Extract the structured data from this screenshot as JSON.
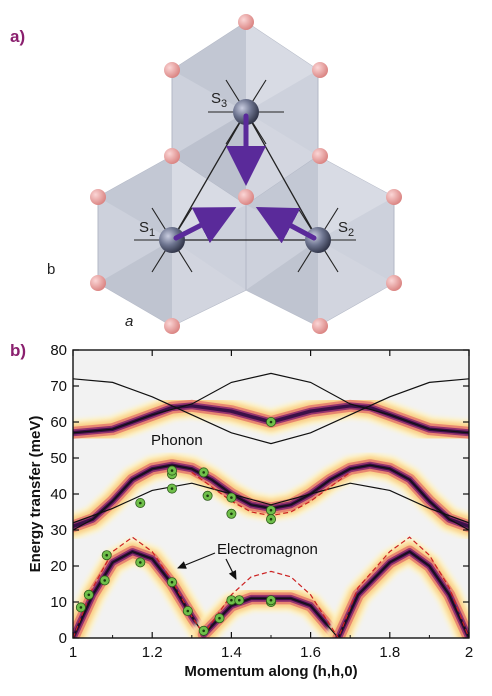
{
  "panel_a": {
    "label": "a)",
    "site_labels": [
      {
        "main": "S",
        "sub": "3"
      },
      {
        "main": "S",
        "sub": "1"
      },
      {
        "main": "S",
        "sub": "2"
      }
    ],
    "lattice_labels": [
      "b",
      "a"
    ],
    "colors": {
      "octahedron": "#c7ccd8",
      "spin_arrow": "#5a2a9a",
      "oxygen": "#e89a9a",
      "metal": "#5e6478"
    }
  },
  "panel_b": {
    "label": "b)",
    "annotations": [
      "Phonon",
      "Electromagnon"
    ],
    "colors": {
      "intensity": "#3a1048",
      "theory": "#111111",
      "dashed": "#cc2222",
      "points": "#6fbf4a"
    }
  },
  "chart_data": {
    "type": "heatmap",
    "title": "",
    "xlabel": "Momentum along (h,h,0)",
    "ylabel": "Energy transfer (meV)",
    "xlim": [
      1,
      2
    ],
    "ylim": [
      0,
      80
    ],
    "xticks": [
      "1",
      "1.2",
      "1.4",
      "1.6",
      "1.8",
      "2"
    ],
    "yticks": [
      "0",
      "10",
      "20",
      "30",
      "40",
      "50",
      "60",
      "70",
      "80"
    ],
    "grid": false,
    "bands": [
      {
        "name": "upper",
        "x": [
          1.0,
          1.1,
          1.2,
          1.25,
          1.3,
          1.4,
          1.5,
          1.6,
          1.7,
          1.75,
          1.8,
          1.9,
          2.0
        ],
        "y": [
          57,
          58,
          62,
          64,
          64.5,
          63,
          60,
          63,
          64.5,
          64,
          62,
          58,
          57
        ]
      },
      {
        "name": "phonon",
        "x": [
          1.0,
          1.05,
          1.1,
          1.15,
          1.2,
          1.25,
          1.3,
          1.35,
          1.4,
          1.45,
          1.5,
          1.55,
          1.6,
          1.65,
          1.7,
          1.75,
          1.8,
          1.85,
          1.9,
          1.95,
          2.0
        ],
        "y": [
          31,
          33,
          38,
          44,
          47,
          48,
          47,
          44,
          40,
          37,
          36,
          37,
          40,
          44,
          47,
          48,
          47,
          44,
          38,
          33,
          31
        ]
      },
      {
        "name": "magnon-left",
        "x": [
          1.0,
          1.05,
          1.1,
          1.15,
          1.2,
          1.25,
          1.3,
          1.33
        ],
        "y": [
          0,
          12,
          21,
          24,
          22,
          15,
          6,
          1
        ]
      },
      {
        "name": "magnon-mid",
        "x": [
          1.33,
          1.4,
          1.45,
          1.5,
          1.55,
          1.6,
          1.67
        ],
        "y": [
          1,
          9,
          11,
          11,
          11,
          9,
          0
        ]
      },
      {
        "name": "magnon-right",
        "x": [
          1.67,
          1.72,
          1.8,
          1.85,
          1.9,
          1.95,
          2.0
        ],
        "y": [
          0,
          12,
          21,
          24,
          20,
          12,
          0
        ]
      }
    ],
    "theory_lines": [
      {
        "x": [
          1.0,
          1.1,
          1.2,
          1.3,
          1.4,
          1.5,
          1.6,
          1.7,
          1.8,
          1.9,
          2.0
        ],
        "y": [
          72,
          71,
          67,
          62,
          57,
          54,
          57,
          62,
          67,
          71,
          72
        ]
      },
      {
        "x": [
          1.0,
          1.1,
          1.2,
          1.3,
          1.4,
          1.5,
          1.6,
          1.7,
          1.8,
          1.9,
          2.0
        ],
        "y": [
          57,
          58,
          62,
          65,
          71,
          73.5,
          71,
          65,
          62,
          58,
          57
        ]
      },
      {
        "x": [
          1.0,
          1.1,
          1.2,
          1.3,
          1.4,
          1.5,
          1.6,
          1.7,
          1.8,
          1.9,
          2.0
        ],
        "y": [
          32,
          36,
          41,
          43,
          40,
          37,
          40,
          43,
          41,
          36,
          32
        ]
      },
      {
        "x": [
          1.0,
          1.05,
          1.1,
          1.15,
          1.2,
          1.25,
          1.3,
          1.35,
          1.4,
          1.45,
          1.5,
          1.55,
          1.6,
          1.65,
          1.7,
          1.75,
          1.8,
          1.85,
          1.9,
          1.95,
          2.0
        ],
        "y": [
          30,
          33,
          38,
          44,
          47,
          48,
          47,
          44,
          40,
          37,
          36,
          37,
          40,
          44,
          47,
          48,
          47,
          44,
          38,
          33,
          30
        ]
      },
      {
        "x": [
          1.0,
          1.05,
          1.1,
          1.15,
          1.2,
          1.25,
          1.3,
          1.33,
          1.4,
          1.45,
          1.5,
          1.55,
          1.6,
          1.67,
          1.72,
          1.8,
          1.85,
          1.9,
          1.95,
          2.0
        ],
        "y": [
          0,
          12,
          21,
          24,
          22,
          15,
          6,
          1,
          9,
          11,
          11,
          11,
          9,
          0,
          12,
          21,
          24,
          20,
          12,
          0
        ]
      }
    ],
    "dashed_lines": [
      {
        "x": [
          1.0,
          1.05,
          1.1,
          1.15,
          1.2,
          1.25,
          1.3,
          1.33,
          1.4,
          1.45,
          1.5,
          1.55,
          1.6,
          1.67,
          1.72,
          1.8,
          1.85,
          1.9,
          1.95,
          2.0
        ],
        "y": [
          0,
          14,
          24,
          28,
          24,
          16,
          6,
          1,
          12,
          17,
          18.5,
          17,
          12,
          0,
          14,
          24,
          28,
          23,
          14,
          0
        ]
      },
      {
        "x": [
          1.3,
          1.35,
          1.4,
          1.45,
          1.5,
          1.55,
          1.6,
          1.65,
          1.7
        ],
        "y": [
          46,
          42,
          38,
          35,
          34,
          35,
          38,
          42,
          46
        ]
      }
    ],
    "data_points": {
      "x": [
        1.02,
        1.04,
        1.08,
        1.085,
        1.17,
        1.17,
        1.25,
        1.25,
        1.25,
        1.33,
        1.34,
        1.4,
        1.4,
        1.4,
        1.5,
        1.5,
        1.5,
        1.5,
        1.25,
        1.29,
        1.33,
        1.37,
        1.42,
        1.5
      ],
      "y": [
        8.5,
        12,
        16,
        23,
        21,
        37.5,
        41.5,
        45.5,
        46.5,
        46,
        39.5,
        39,
        34.5,
        10.5,
        60,
        35.5,
        33,
        10,
        15.5,
        7.5,
        2,
        5.5,
        10.5,
        10.5
      ]
    }
  }
}
